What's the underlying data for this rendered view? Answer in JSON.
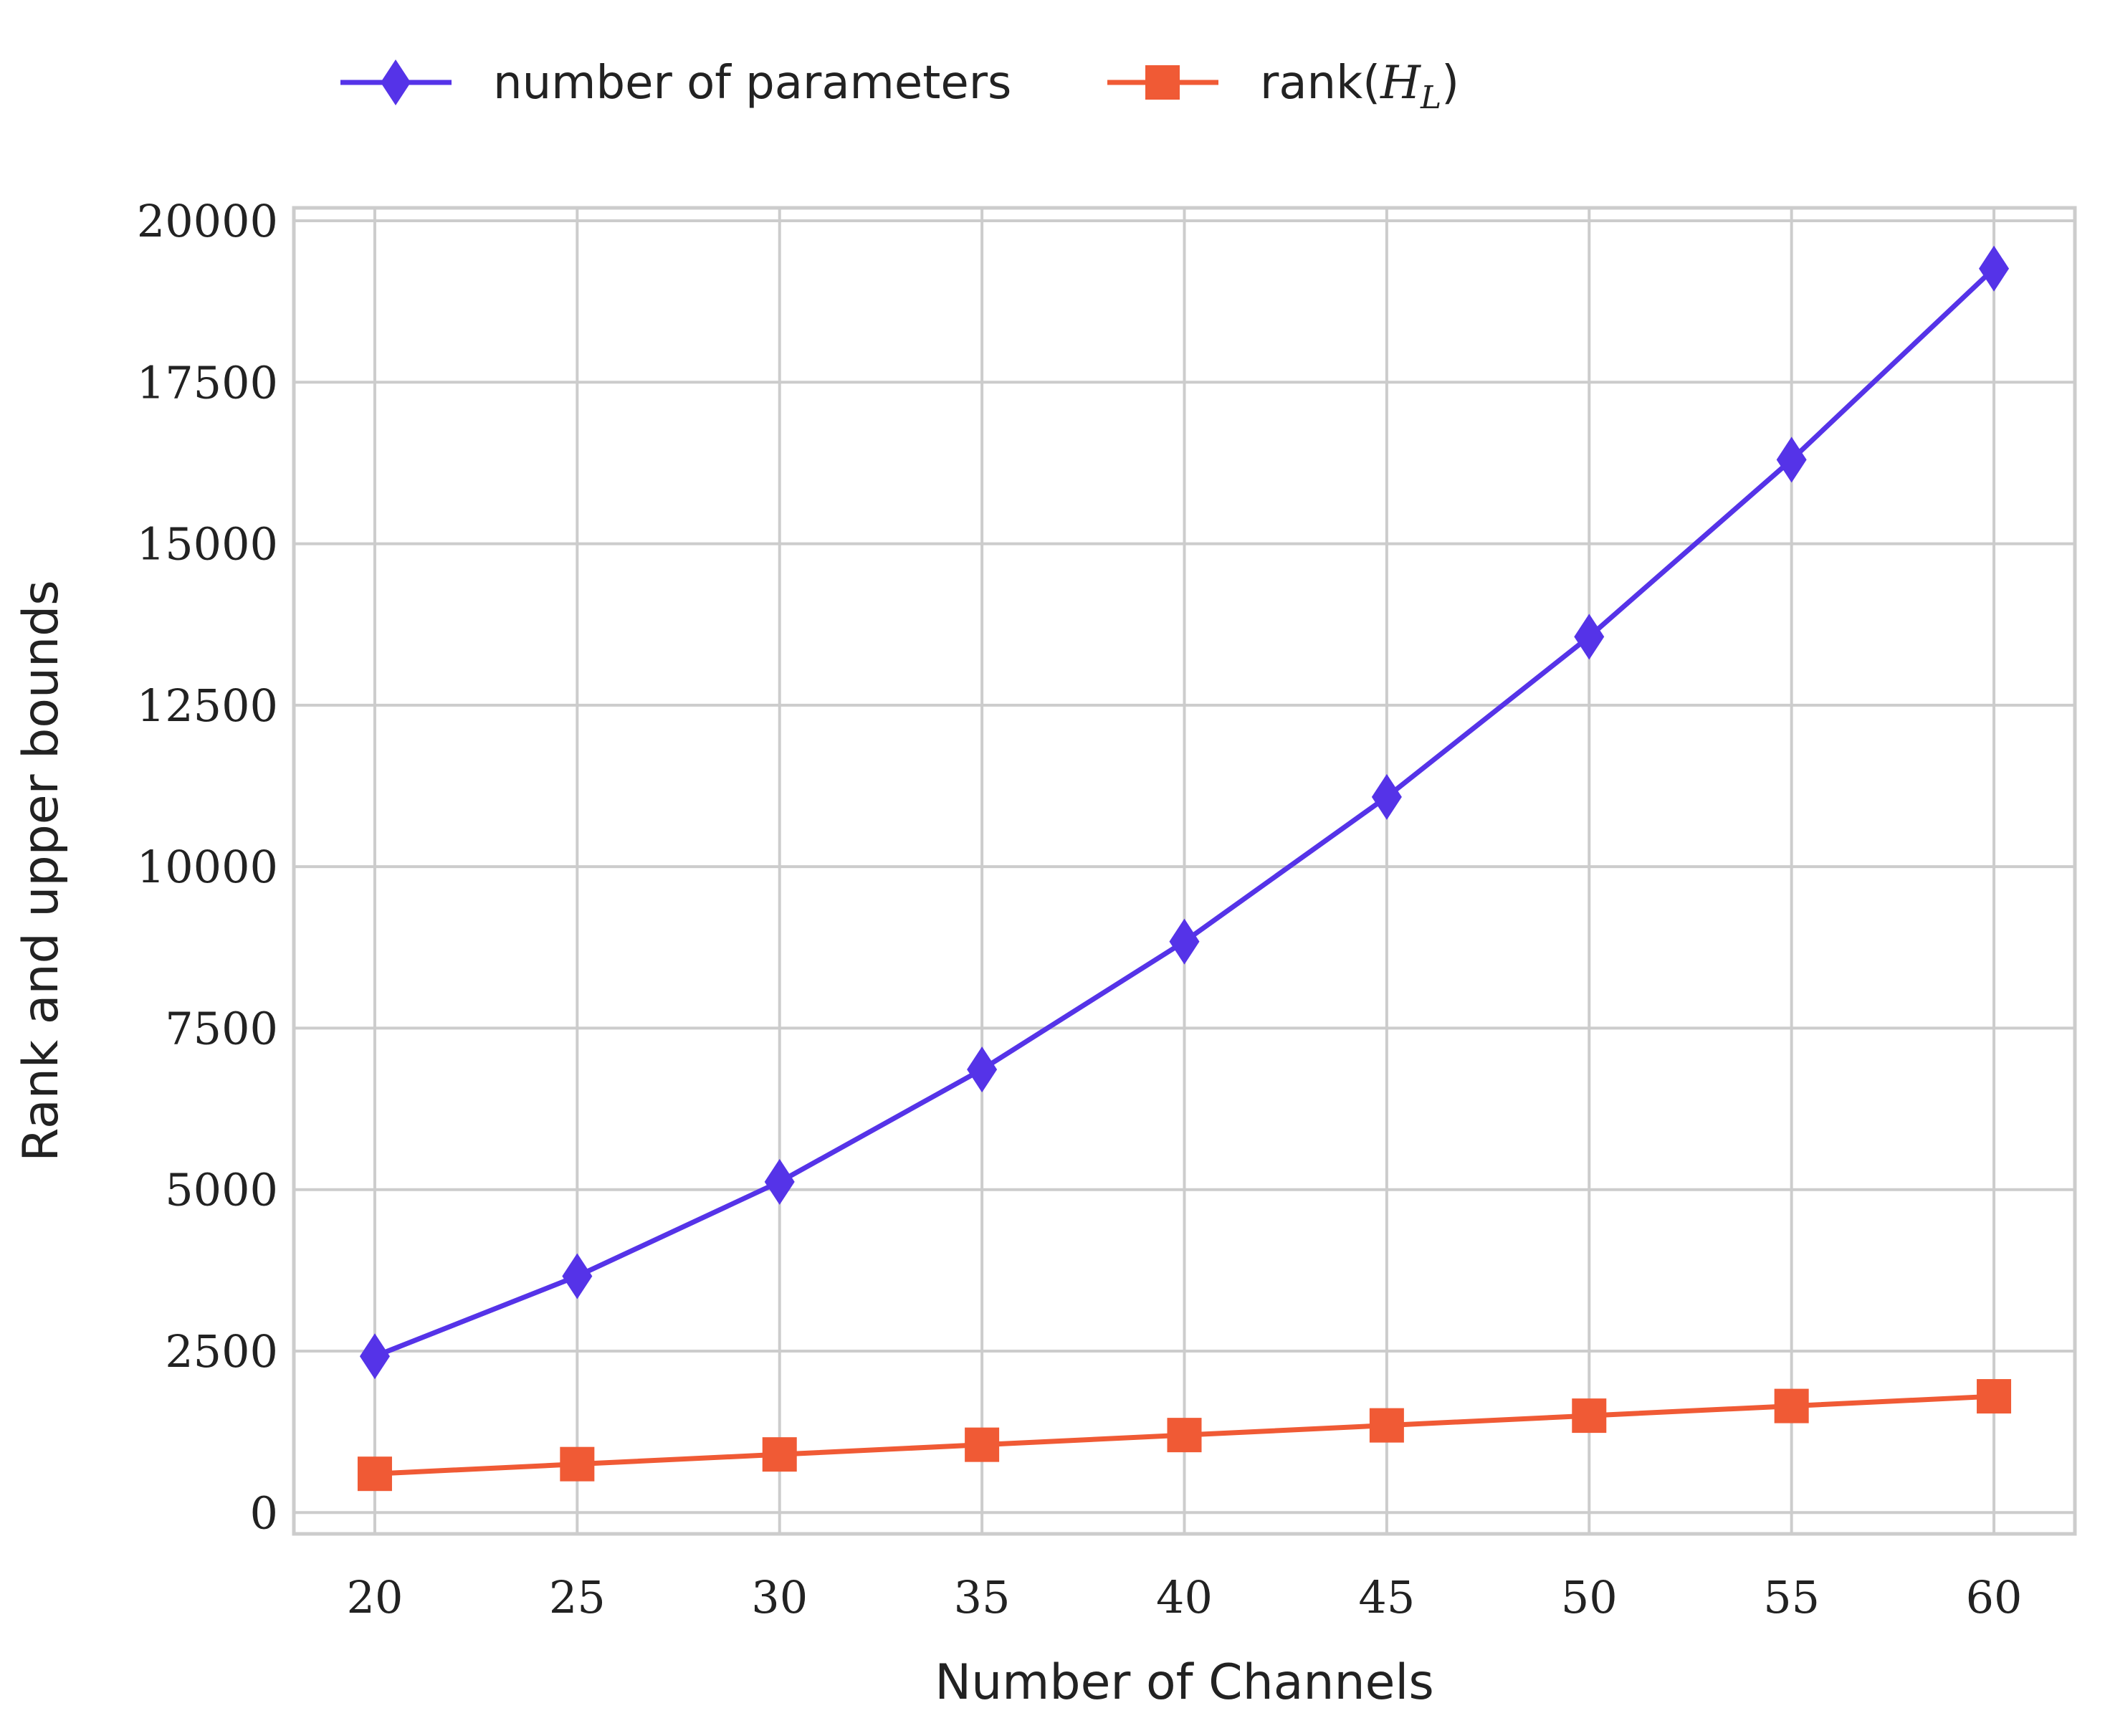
{
  "chart_data": {
    "type": "line",
    "title": "",
    "xlabel": "Number of Channels",
    "ylabel": "Rank and upper bounds",
    "x": [
      20,
      25,
      30,
      35,
      40,
      45,
      50,
      55,
      60
    ],
    "xticks": [
      "20",
      "25",
      "30",
      "35",
      "40",
      "45",
      "50",
      "55",
      "60"
    ],
    "xlim": [
      18,
      62
    ],
    "yticks": [
      "0",
      "2500",
      "5000",
      "7500",
      "10000",
      "12500",
      "15000",
      "17500",
      "20000"
    ],
    "ylim": [
      -330,
      20200
    ],
    "grid": true,
    "legend": {
      "placement": "top-left, above plot",
      "entries": [
        {
          "label": "number of parameters",
          "marker": "diamond",
          "color": "#5533E8"
        },
        {
          "label_prefix": "rank(",
          "label_math": "H",
          "label_sub": "L",
          "label_suffix": ")",
          "marker": "square",
          "color": "#F05A35"
        }
      ]
    },
    "series": [
      {
        "name": "number of parameters",
        "color": "#5533E8",
        "marker": "diamond",
        "values": [
          2420,
          3660,
          5120,
          6860,
          8840,
          11080,
          13560,
          16300,
          19260
        ]
      },
      {
        "name": "rank(H_L)",
        "color": "#F05A35",
        "marker": "square",
        "values": [
          600,
          750,
          900,
          1050,
          1200,
          1350,
          1500,
          1650,
          1800
        ]
      }
    ]
  }
}
